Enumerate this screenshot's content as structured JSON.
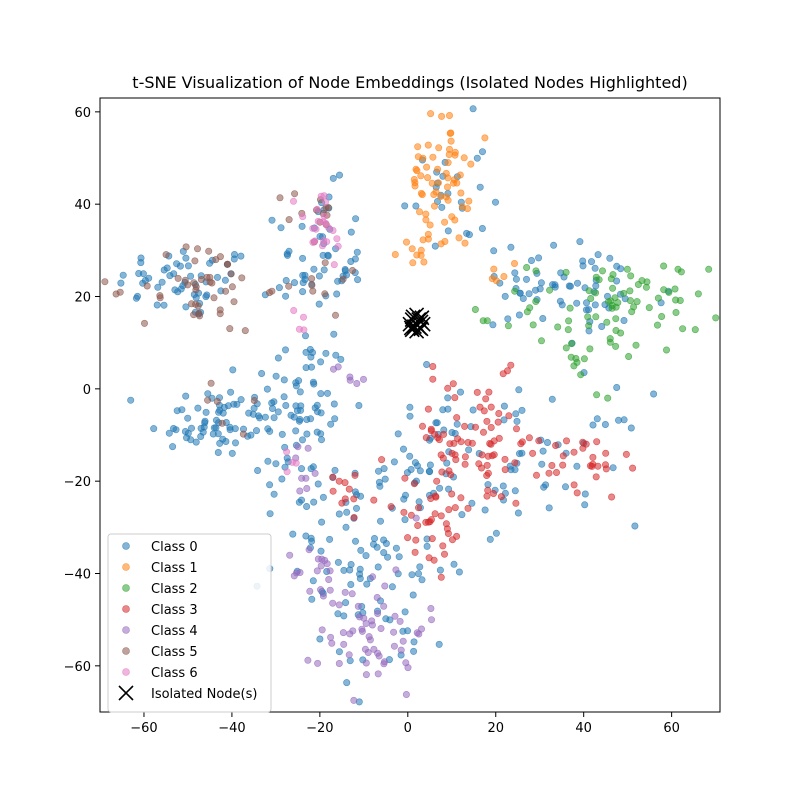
{
  "chart_data": {
    "type": "scatter",
    "title": "t-SNE Visualization of Node Embeddings (Isolated Nodes Highlighted)",
    "xlabel": "",
    "ylabel": "",
    "xlim": [
      -70,
      71
    ],
    "ylim": [
      -70,
      63
    ],
    "xticks": [
      -60,
      -40,
      -20,
      0,
      20,
      40,
      60
    ],
    "yticks": [
      -60,
      -40,
      -20,
      0,
      20,
      40,
      60
    ],
    "grid": false,
    "legend_position": "lower-left",
    "series": [
      {
        "name": "Class 0",
        "color": "#1f77b4",
        "marker": "circle",
        "clusters": [
          {
            "cx": -50,
            "cy": 23,
            "sx": 8,
            "sy": 4,
            "n": 55
          },
          {
            "cx": -45,
            "cy": -7,
            "sx": 7,
            "sy": 4,
            "n": 60
          },
          {
            "cx": -25,
            "cy": -5,
            "sx": 6,
            "sy": 9,
            "n": 80
          },
          {
            "cx": -20,
            "cy": 27,
            "sx": 5,
            "sy": 8,
            "n": 55
          },
          {
            "cx": 8,
            "cy": 42,
            "sx": 5,
            "sy": 8,
            "n": 25
          },
          {
            "cx": -5,
            "cy": -40,
            "sx": 8,
            "sy": 12,
            "n": 70
          },
          {
            "cx": -20,
            "cy": -30,
            "sx": 7,
            "sy": 5,
            "n": 30
          },
          {
            "cx": 5,
            "cy": -15,
            "sx": 6,
            "sy": 8,
            "n": 40
          },
          {
            "cx": 30,
            "cy": -15,
            "sx": 12,
            "sy": 7,
            "n": 55
          },
          {
            "cx": 40,
            "cy": 20,
            "sx": 10,
            "sy": 6,
            "n": 55
          },
          {
            "cx": 25,
            "cy": 25,
            "sx": 3,
            "sy": 3,
            "n": 12
          }
        ]
      },
      {
        "name": "Class 1",
        "color": "#ff7f0e",
        "marker": "circle",
        "clusters": [
          {
            "cx": 7,
            "cy": 45,
            "sx": 3.5,
            "sy": 7,
            "n": 60
          },
          {
            "cx": 4,
            "cy": 32,
            "sx": 3,
            "sy": 3,
            "n": 12
          },
          {
            "cx": 22,
            "cy": 25,
            "sx": 2,
            "sy": 2,
            "n": 5
          }
        ]
      },
      {
        "name": "Class 2",
        "color": "#2ca02c",
        "marker": "circle",
        "clusters": [
          {
            "cx": 48,
            "cy": 18,
            "sx": 10,
            "sy": 5,
            "n": 75
          },
          {
            "cx": 40,
            "cy": 7,
            "sx": 4,
            "sy": 3,
            "n": 12
          },
          {
            "cx": 16,
            "cy": 15,
            "sx": 1.5,
            "sy": 1.5,
            "n": 3
          }
        ]
      },
      {
        "name": "Class 3",
        "color": "#d62728",
        "marker": "circle",
        "clusters": [
          {
            "cx": 15,
            "cy": -12,
            "sx": 9,
            "sy": 7,
            "n": 85
          },
          {
            "cx": 40,
            "cy": -17,
            "sx": 5,
            "sy": 4,
            "n": 25
          },
          {
            "cx": 5,
            "cy": -30,
            "sx": 5,
            "sy": 6,
            "n": 30
          },
          {
            "cx": -15,
            "cy": -20,
            "sx": 3,
            "sy": 3,
            "n": 10
          }
        ]
      },
      {
        "name": "Class 4",
        "color": "#9467bd",
        "marker": "circle",
        "clusters": [
          {
            "cx": -8,
            "cy": -52,
            "sx": 6,
            "sy": 7,
            "n": 60
          },
          {
            "cx": -20,
            "cy": -40,
            "sx": 3,
            "sy": 3,
            "n": 15
          },
          {
            "cx": -25,
            "cy": -17,
            "sx": 3,
            "sy": 3,
            "n": 8
          },
          {
            "cx": -12,
            "cy": 3,
            "sx": 3,
            "sy": 2,
            "n": 6
          }
        ]
      },
      {
        "name": "Class 5",
        "color": "#8c564b",
        "marker": "circle",
        "clusters": [
          {
            "cx": -47,
            "cy": 22,
            "sx": 7,
            "sy": 5,
            "n": 45
          },
          {
            "cx": -22,
            "cy": 38,
            "sx": 3,
            "sy": 3,
            "n": 12
          },
          {
            "cx": -18,
            "cy": 25,
            "sx": 4,
            "sy": 5,
            "n": 10
          },
          {
            "cx": -40,
            "cy": -5,
            "sx": 4,
            "sy": 3,
            "n": 6
          }
        ]
      },
      {
        "name": "Class 6",
        "color": "#e377c2",
        "marker": "circle",
        "clusters": [
          {
            "cx": -20,
            "cy": 35,
            "sx": 3,
            "sy": 5,
            "n": 22
          },
          {
            "cx": -25,
            "cy": 13,
            "sx": 2,
            "sy": 2,
            "n": 4
          },
          {
            "cx": -27,
            "cy": -16,
            "sx": 2,
            "sy": 2,
            "n": 4
          }
        ]
      },
      {
        "name": "Isolated Node(s)",
        "color": "#000000",
        "marker": "x",
        "points": [
          [
            1,
            15
          ],
          [
            2,
            14
          ],
          [
            3,
            13
          ],
          [
            1.5,
            13.5
          ],
          [
            2.5,
            15
          ],
          [
            3,
            14.5
          ],
          [
            0.5,
            14
          ],
          [
            2,
            12.5
          ],
          [
            1,
            12.8
          ],
          [
            3.5,
            14
          ],
          [
            2,
            16
          ],
          [
            2.7,
            13.2
          ],
          [
            1.2,
            15.6
          ],
          [
            0.8,
            13.2
          ],
          [
            3.2,
            15.4
          ]
        ]
      }
    ]
  }
}
